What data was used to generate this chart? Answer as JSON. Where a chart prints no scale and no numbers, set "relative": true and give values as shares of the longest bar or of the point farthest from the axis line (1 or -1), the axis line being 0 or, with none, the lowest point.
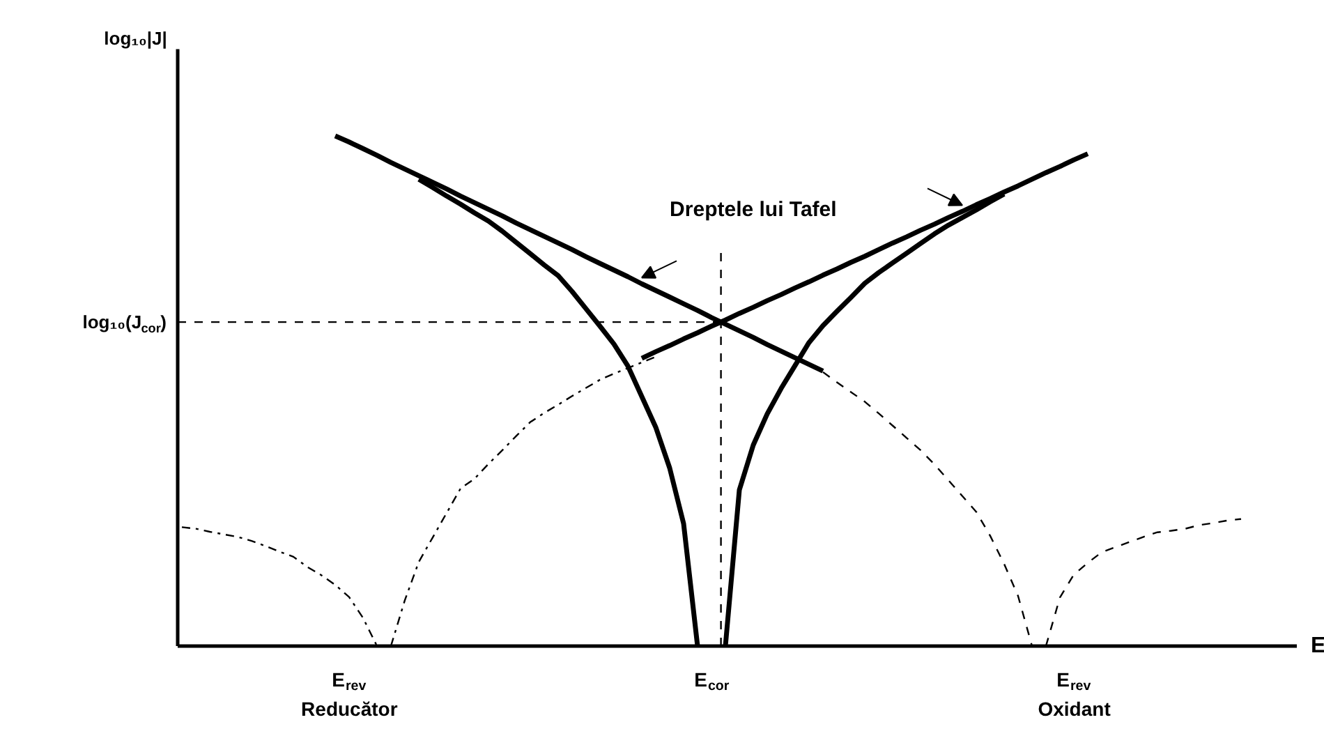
{
  "chart_data": {
    "type": "line",
    "relative": true,
    "xlabel": "E",
    "ylabel": "log₁₀|J|",
    "categories": [
      null,
      null,
      null,
      null,
      null,
      null,
      null,
      null,
      null,
      null,
      null,
      null,
      "E$_{rev}$\nReducător",
      null,
      null,
      null,
      null,
      null,
      null,
      null,
      null,
      null,
      null,
      null,
      null,
      null,
      null,
      null,
      null,
      null,
      null,
      null,
      null,
      null,
      null,
      null,
      null,
      null,
      "E$_{cor}$",
      null,
      null,
      null,
      null,
      null,
      null,
      null,
      null,
      null,
      null,
      null,
      null,
      null,
      null,
      null,
      null,
      null,
      null,
      null,
      null,
      null,
      null,
      null,
      null,
      null,
      "E$_{rev}$\nOxidant",
      null,
      null,
      null,
      null,
      null,
      null,
      null,
      null,
      null,
      null,
      null,
      null
    ],
    "annotations": [
      "Dreptele lui Tafel"
    ],
    "ref_lines": [
      {
        "axis": "y",
        "value": 0.635,
        "label": "log₁₀(J$_{cor}$)",
        "line_style": "dashed"
      }
    ],
    "series": [
      {
        "color": "#000000",
        "line_style": "solid",
        "values": [
          null,
          null,
          null,
          null,
          null,
          null,
          null,
          null,
          null,
          null,
          null,
          1.0,
          0.988,
          0.975,
          0.962,
          0.948,
          0.935,
          0.922,
          0.909,
          0.896,
          0.882,
          0.869,
          0.856,
          0.843,
          0.829,
          0.816,
          0.803,
          0.79,
          0.777,
          0.763,
          0.75,
          0.737,
          0.724,
          0.71,
          0.697,
          0.684,
          0.671,
          0.658,
          0.644,
          0.631,
          0.618,
          0.605,
          0.591,
          0.578,
          0.565,
          0.552,
          0.539,
          null,
          null,
          null,
          null,
          null,
          null,
          null,
          null,
          null,
          null,
          null,
          null,
          null,
          null,
          null,
          null,
          null,
          null,
          null,
          null,
          null,
          null,
          null,
          null,
          null,
          null,
          null,
          null,
          null,
          null
        ]
      },
      {
        "color": "#000000",
        "line_style": "solid",
        "values": [
          null,
          null,
          null,
          null,
          null,
          null,
          null,
          null,
          null,
          null,
          null,
          null,
          null,
          null,
          null,
          null,
          null,
          null,
          null,
          null,
          null,
          null,
          null,
          null,
          null,
          null,
          null,
          null,
          null,
          null,
          null,
          null,
          null,
          0.564,
          0.577,
          0.589,
          0.602,
          0.614,
          0.627,
          0.639,
          0.652,
          0.664,
          0.677,
          0.689,
          0.702,
          0.714,
          0.727,
          0.739,
          0.752,
          0.764,
          0.777,
          0.79,
          0.802,
          0.815,
          0.827,
          0.84,
          0.852,
          0.865,
          0.877,
          0.89,
          0.902,
          0.915,
          0.928,
          0.94,
          0.953,
          0.965,
          null,
          null,
          null,
          null,
          null,
          null,
          null,
          null,
          null,
          null,
          null
        ]
      },
      {
        "color": "#000000",
        "line_style": "solid",
        "values": [
          null,
          null,
          null,
          null,
          null,
          null,
          null,
          null,
          null,
          null,
          null,
          null,
          null,
          null,
          null,
          null,
          null,
          0.915,
          0.899,
          0.882,
          0.866,
          0.849,
          0.833,
          0.813,
          0.791,
          0.769,
          0.747,
          0.726,
          0.695,
          0.661,
          0.627,
          0.592,
          0.549,
          0.489,
          0.429,
          0.349,
          0.24,
          0,
          null,
          null,
          null,
          null,
          null,
          null,
          null,
          null,
          null,
          null,
          null,
          null,
          null,
          null,
          null,
          null,
          null,
          null,
          null,
          null,
          null,
          null,
          null,
          null,
          null,
          null,
          null,
          null,
          null,
          null,
          null,
          null,
          null,
          null,
          null,
          null,
          null,
          null,
          null
        ]
      },
      {
        "color": "#000000",
        "line_style": "solid",
        "values": [
          null,
          null,
          null,
          null,
          null,
          null,
          null,
          null,
          null,
          null,
          null,
          null,
          null,
          null,
          null,
          null,
          null,
          null,
          null,
          null,
          null,
          null,
          null,
          null,
          null,
          null,
          null,
          null,
          null,
          null,
          null,
          null,
          null,
          null,
          null,
          null,
          null,
          null,
          null,
          0,
          0.306,
          0.394,
          0.455,
          0.505,
          0.55,
          0.595,
          0.628,
          0.656,
          0.683,
          0.711,
          0.732,
          0.751,
          0.77,
          0.789,
          0.808,
          0.825,
          0.84,
          0.855,
          0.871,
          0.886,
          null,
          null,
          null,
          null,
          null,
          null,
          null,
          null,
          null,
          null,
          null,
          null,
          null,
          null,
          null,
          null,
          null
        ]
      },
      {
        "color": "#000000",
        "line_style": "dotted",
        "values": [
          0.233,
          0.23,
          0.224,
          0.219,
          0.214,
          0.206,
          0.196,
          0.185,
          0.175,
          0.155,
          0.139,
          0.12,
          0.096,
          0.055,
          0,
          null,
          null,
          null,
          null,
          null,
          null,
          null,
          null,
          null,
          null,
          null,
          null,
          null,
          null,
          null,
          null,
          null,
          null,
          null,
          null,
          null,
          null,
          null,
          null,
          null,
          null,
          null,
          null,
          null,
          null,
          null,
          null,
          null,
          null,
          null,
          null,
          null,
          null,
          null,
          null,
          null,
          null,
          null,
          null,
          null,
          null,
          null,
          null,
          null,
          null,
          null,
          null,
          null,
          null,
          null,
          null,
          null,
          null,
          null,
          null,
          null,
          null
        ]
      },
      {
        "color": "#000000",
        "line_style": "dotted",
        "values": [
          null,
          null,
          null,
          null,
          null,
          null,
          null,
          null,
          null,
          null,
          null,
          null,
          null,
          null,
          null,
          0,
          0.09,
          0.165,
          0.213,
          0.261,
          0.309,
          0.328,
          0.357,
          0.384,
          0.412,
          0.439,
          0.457,
          0.473,
          0.49,
          0.506,
          0.522,
          0.534,
          0.545,
          0.556,
          0.567,
          null,
          null,
          null,
          null,
          null,
          null,
          null,
          null,
          null,
          null,
          null,
          null,
          null,
          null,
          null,
          null,
          null,
          null,
          null,
          null,
          null,
          null,
          null,
          null,
          null,
          null,
          null,
          null,
          null,
          null,
          null,
          null,
          null,
          null,
          null,
          null,
          null,
          null,
          null,
          null,
          null,
          null
        ]
      },
      {
        "color": "#000000",
        "line_style": "dashed",
        "values": [
          null,
          null,
          null,
          null,
          null,
          null,
          null,
          null,
          null,
          null,
          null,
          null,
          null,
          null,
          null,
          null,
          null,
          null,
          null,
          null,
          null,
          null,
          null,
          null,
          null,
          null,
          null,
          null,
          null,
          null,
          null,
          null,
          null,
          null,
          null,
          null,
          null,
          null,
          null,
          null,
          null,
          null,
          null,
          null,
          null,
          null,
          0.537,
          0.517,
          0.498,
          0.479,
          0.456,
          0.432,
          0.408,
          0.384,
          0.356,
          0.325,
          0.294,
          0.263,
          0.216,
          0.161,
          0.098,
          0,
          null,
          null,
          null,
          null,
          null,
          null,
          null,
          null,
          null,
          null,
          null,
          null,
          null,
          null,
          null
        ]
      },
      {
        "color": "#000000",
        "line_style": "dashed",
        "values": [
          null,
          null,
          null,
          null,
          null,
          null,
          null,
          null,
          null,
          null,
          null,
          null,
          null,
          null,
          null,
          null,
          null,
          null,
          null,
          null,
          null,
          null,
          null,
          null,
          null,
          null,
          null,
          null,
          null,
          null,
          null,
          null,
          null,
          null,
          null,
          null,
          null,
          null,
          null,
          null,
          null,
          null,
          null,
          null,
          null,
          null,
          null,
          null,
          null,
          null,
          null,
          null,
          null,
          null,
          null,
          null,
          null,
          null,
          null,
          null,
          null,
          null,
          0,
          0.095,
          0.14,
          0.163,
          0.184,
          0.194,
          0.204,
          0.214,
          0.223,
          0.226,
          0.23,
          0.237,
          0.241,
          0.246,
          0.249
        ]
      }
    ]
  }
}
